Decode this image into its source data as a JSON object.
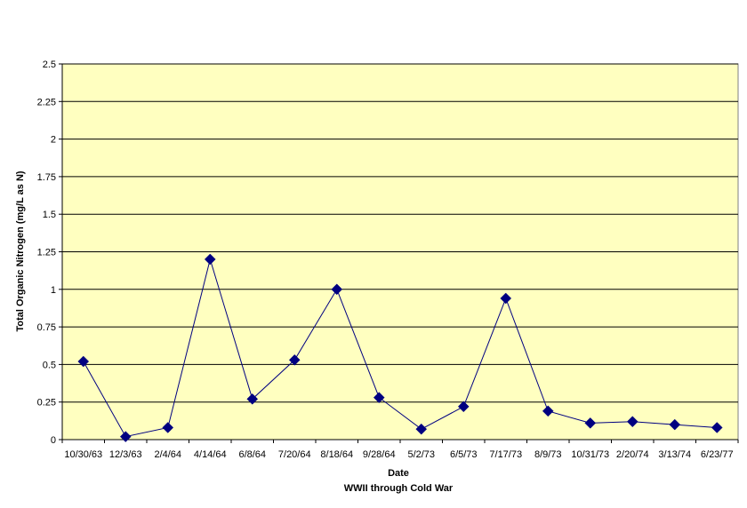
{
  "chart_data": {
    "type": "line",
    "title": "",
    "xlabel": "Date",
    "xlabel_sub": "WWII through Cold War",
    "ylabel": "Total Organic Nitrogen (mg/L as N)",
    "ylim": [
      0,
      2.5
    ],
    "yticks": [
      "0",
      "0.25",
      "0.5",
      "0.75",
      "1",
      "1.25",
      "1.5",
      "1.75",
      "2",
      "2.25",
      "2.5"
    ],
    "grid": true,
    "legend": "none",
    "colors": {
      "plot_bg": "#FFFFC0",
      "series": "#000080",
      "grid": "#000000"
    },
    "categories": [
      "10/30/63",
      "12/3/63",
      "2/4/64",
      "4/14/64",
      "6/8/64",
      "7/20/64",
      "8/18/64",
      "9/28/64",
      "5/2/73",
      "6/5/73",
      "7/17/73",
      "8/9/73",
      "10/31/73",
      "2/20/74",
      "3/13/74",
      "6/23/77"
    ],
    "series": [
      {
        "values": [
          0.52,
          0.02,
          0.08,
          1.2,
          0.27,
          0.53,
          1.0,
          0.28,
          0.07,
          0.22,
          0.94,
          0.19,
          0.11,
          0.12,
          0.1,
          0.08
        ]
      }
    ]
  }
}
